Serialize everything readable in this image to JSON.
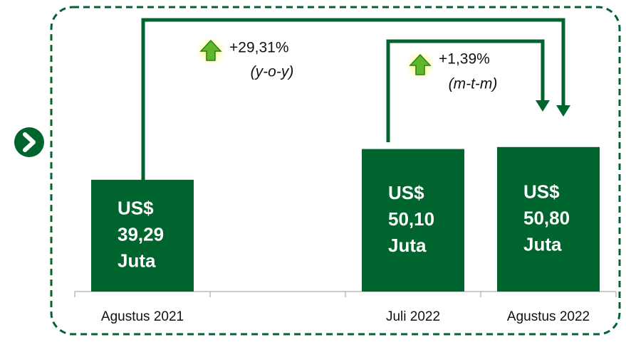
{
  "chart_data": {
    "type": "bar",
    "categories": [
      "Agustus 2021",
      null,
      "Juli 2022",
      "Agustus 2022"
    ],
    "values": [
      39.29,
      null,
      50.1,
      50.8
    ],
    "value_labels": [
      "US$\n39,29\nJuta",
      null,
      "US$\n50,10\nJuta",
      "US$\n50,80\nJuta"
    ],
    "color": "#00642e",
    "annotations": [
      {
        "text": "+29,31%",
        "note": "(y-o-y)"
      },
      {
        "text": "+1,39%",
        "note": "(m-t-m)"
      }
    ]
  }
}
